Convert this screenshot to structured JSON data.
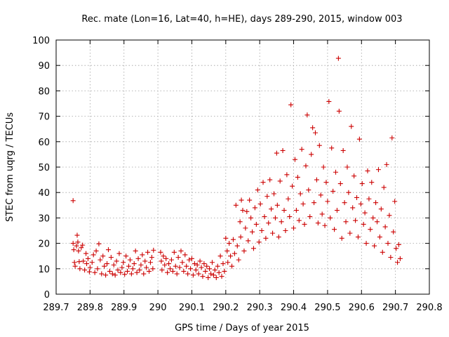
{
  "chart_data": {
    "type": "scatter",
    "title": "Rec. mate (Lon=16, Lat=40, h=HE), days 289-290, 2015, window 003",
    "xlabel": "GPS time / Days of year 2015",
    "ylabel": "STEC from uqrg / TECUs",
    "xlim": [
      289.7,
      290.8
    ],
    "ylim": [
      0,
      100
    ],
    "xticks": [
      289.7,
      289.8,
      289.9,
      290,
      290.1,
      290.2,
      290.3,
      290.4,
      290.5,
      290.6,
      290.7,
      290.8
    ],
    "xtick_labels": [
      "289.7",
      "289.8",
      "289.9",
      "290",
      "290.1",
      "290.2",
      "290.3",
      "290.4",
      "290.5",
      "290.6",
      "290.7",
      "290.8"
    ],
    "yticks": [
      0,
      10,
      20,
      30,
      40,
      50,
      60,
      70,
      80,
      90,
      100
    ],
    "ytick_labels": [
      "0",
      "10",
      "20",
      "30",
      "40",
      "50",
      "60",
      "70",
      "80",
      "90",
      "100"
    ],
    "grid": true,
    "marker": "+",
    "color": "#cc0000",
    "series": [
      {
        "points": [
          [
            289.75,
            36.8
          ],
          [
            289.75,
            20.0
          ],
          [
            289.752,
            17.5
          ],
          [
            289.754,
            12.5
          ],
          [
            289.756,
            11.0
          ],
          [
            289.76,
            19.0
          ],
          [
            289.762,
            23.2
          ],
          [
            289.764,
            20.5
          ],
          [
            289.766,
            17.0
          ],
          [
            289.768,
            12.8
          ],
          [
            289.77,
            10.0
          ],
          [
            289.774,
            18.3
          ],
          [
            289.778,
            19.3
          ],
          [
            289.78,
            13.0
          ],
          [
            289.784,
            9.5
          ],
          [
            289.788,
            16.0
          ],
          [
            289.79,
            12.0
          ],
          [
            289.794,
            14.0
          ],
          [
            289.798,
            8.8
          ],
          [
            289.8,
            10.5
          ],
          [
            289.806,
            12.5
          ],
          [
            289.81,
            15.5
          ],
          [
            289.814,
            8.5
          ],
          [
            289.818,
            17.0
          ],
          [
            289.822,
            10.0
          ],
          [
            289.826,
            19.8
          ],
          [
            289.83,
            13.5
          ],
          [
            289.834,
            8.0
          ],
          [
            289.838,
            15.0
          ],
          [
            289.842,
            11.0
          ],
          [
            289.846,
            7.5
          ],
          [
            289.85,
            12.0
          ],
          [
            289.854,
            17.5
          ],
          [
            289.858,
            9.0
          ],
          [
            289.862,
            14.5
          ],
          [
            289.866,
            8.0
          ],
          [
            289.87,
            11.5
          ],
          [
            289.874,
            7.5
          ],
          [
            289.878,
            13.0
          ],
          [
            289.882,
            9.5
          ],
          [
            289.886,
            16.0
          ],
          [
            289.89,
            8.5
          ],
          [
            289.894,
            10.5
          ],
          [
            289.898,
            12.5
          ],
          [
            289.902,
            7.8
          ],
          [
            289.906,
            15.0
          ],
          [
            289.91,
            9.0
          ],
          [
            289.914,
            11.0
          ],
          [
            289.918,
            13.5
          ],
          [
            289.922,
            8.0
          ],
          [
            289.926,
            10.0
          ],
          [
            289.93,
            12.0
          ],
          [
            289.934,
            17.0
          ],
          [
            289.938,
            8.5
          ],
          [
            289.942,
            14.0
          ],
          [
            289.946,
            9.5
          ],
          [
            289.95,
            11.5
          ],
          [
            289.954,
            15.5
          ],
          [
            289.958,
            8.0
          ],
          [
            289.962,
            13.0
          ],
          [
            289.966,
            10.5
          ],
          [
            289.97,
            16.5
          ],
          [
            289.974,
            9.0
          ],
          [
            289.978,
            12.5
          ],
          [
            289.982,
            14.5
          ],
          [
            289.985,
            10.0
          ],
          [
            289.987,
            17.3
          ],
          [
            290.008,
            16.5
          ],
          [
            290.01,
            13.0
          ],
          [
            290.012,
            9.5
          ],
          [
            290.016,
            15.0
          ],
          [
            290.02,
            11.5
          ],
          [
            290.024,
            14.0
          ],
          [
            290.028,
            8.5
          ],
          [
            290.032,
            12.0
          ],
          [
            290.036,
            10.0
          ],
          [
            290.04,
            13.5
          ],
          [
            290.044,
            9.0
          ],
          [
            290.048,
            16.5
          ],
          [
            290.052,
            11.0
          ],
          [
            290.056,
            8.0
          ],
          [
            290.06,
            14.5
          ],
          [
            290.064,
            10.5
          ],
          [
            290.068,
            17.0
          ],
          [
            290.072,
            12.5
          ],
          [
            290.076,
            9.0
          ],
          [
            290.08,
            15.5
          ],
          [
            290.084,
            11.0
          ],
          [
            290.088,
            8.0
          ],
          [
            290.092,
            13.5
          ],
          [
            290.096,
            10.0
          ],
          [
            290.1,
            14.0
          ],
          [
            290.104,
            7.5
          ],
          [
            290.108,
            12.0
          ],
          [
            290.112,
            9.5
          ],
          [
            290.116,
            11.5
          ],
          [
            290.12,
            8.0
          ],
          [
            290.124,
            13.0
          ],
          [
            290.128,
            10.5
          ],
          [
            290.132,
            7.0
          ],
          [
            290.136,
            12.0
          ],
          [
            290.14,
            9.0
          ],
          [
            290.144,
            11.0
          ],
          [
            290.148,
            6.5
          ],
          [
            290.152,
            10.0
          ],
          [
            290.156,
            8.0
          ],
          [
            290.16,
            12.5
          ],
          [
            290.164,
            7.5
          ],
          [
            290.168,
            9.5
          ],
          [
            290.172,
            6.5
          ],
          [
            290.176,
            11.0
          ],
          [
            290.18,
            8.5
          ],
          [
            290.184,
            15.0
          ],
          [
            290.188,
            7.0
          ],
          [
            290.192,
            12.0
          ],
          [
            290.196,
            9.0
          ],
          [
            290.2,
            22.0
          ],
          [
            290.204,
            17.0
          ],
          [
            290.206,
            12.5
          ],
          [
            290.21,
            20.0
          ],
          [
            290.214,
            15.0
          ],
          [
            290.218,
            11.0
          ],
          [
            290.222,
            21.5
          ],
          [
            290.226,
            16.0
          ],
          [
            290.23,
            35.0
          ],
          [
            290.234,
            19.0
          ],
          [
            290.238,
            13.5
          ],
          [
            290.242,
            28.5
          ],
          [
            290.244,
            22.5
          ],
          [
            290.246,
            37.0
          ],
          [
            290.25,
            33.0
          ],
          [
            290.254,
            17.0
          ],
          [
            290.258,
            26.0
          ],
          [
            290.262,
            32.5
          ],
          [
            290.266,
            21.0
          ],
          [
            290.27,
            37.0
          ],
          [
            290.274,
            30.0
          ],
          [
            290.278,
            24.5
          ],
          [
            290.282,
            18.0
          ],
          [
            290.286,
            34.0
          ],
          [
            290.29,
            27.5
          ],
          [
            290.294,
            41.0
          ],
          [
            290.298,
            20.5
          ],
          [
            290.302,
            35.5
          ],
          [
            290.306,
            25.0
          ],
          [
            290.31,
            44.0
          ],
          [
            290.314,
            30.5
          ],
          [
            290.318,
            22.0
          ],
          [
            290.322,
            38.5
          ],
          [
            290.326,
            28.0
          ],
          [
            290.33,
            45.0
          ],
          [
            290.334,
            33.5
          ],
          [
            290.338,
            24.0
          ],
          [
            290.342,
            39.5
          ],
          [
            290.346,
            30.0
          ],
          [
            290.35,
            55.5
          ],
          [
            290.352,
            35.0
          ],
          [
            290.356,
            22.5
          ],
          [
            290.36,
            44.5
          ],
          [
            290.364,
            28.5
          ],
          [
            290.368,
            56.5
          ],
          [
            290.372,
            33.0
          ],
          [
            290.376,
            25.0
          ],
          [
            290.38,
            47.0
          ],
          [
            290.384,
            37.5
          ],
          [
            290.388,
            30.5
          ],
          [
            290.392,
            74.5
          ],
          [
            290.396,
            42.5
          ],
          [
            290.4,
            26.0
          ],
          [
            290.404,
            53.0
          ],
          [
            290.408,
            33.0
          ],
          [
            290.412,
            46.0
          ],
          [
            290.416,
            29.0
          ],
          [
            290.42,
            39.5
          ],
          [
            290.424,
            57.0
          ],
          [
            290.428,
            35.5
          ],
          [
            290.432,
            27.5
          ],
          [
            290.436,
            50.5
          ],
          [
            290.44,
            70.5
          ],
          [
            290.444,
            41.0
          ],
          [
            290.448,
            30.5
          ],
          [
            290.452,
            55.0
          ],
          [
            290.456,
            65.5
          ],
          [
            290.46,
            36.0
          ],
          [
            290.464,
            63.5
          ],
          [
            290.468,
            45.0
          ],
          [
            290.472,
            28.0
          ],
          [
            290.476,
            58.5
          ],
          [
            290.48,
            39.0
          ],
          [
            290.484,
            31.5
          ],
          [
            290.488,
            50.0
          ],
          [
            290.492,
            27.0
          ],
          [
            290.496,
            44.0
          ],
          [
            290.5,
            36.5
          ],
          [
            290.504,
            75.8
          ],
          [
            290.508,
            30.0
          ],
          [
            290.512,
            57.5
          ],
          [
            290.516,
            40.5
          ],
          [
            290.52,
            25.5
          ],
          [
            290.524,
            48.0
          ],
          [
            290.528,
            33.0
          ],
          [
            290.532,
            92.8
          ],
          [
            290.534,
            72.0
          ],
          [
            290.538,
            43.5
          ],
          [
            290.542,
            22.0
          ],
          [
            290.546,
            56.5
          ],
          [
            290.55,
            36.0
          ],
          [
            290.554,
            28.5
          ],
          [
            290.558,
            50.0
          ],
          [
            290.562,
            40.0
          ],
          [
            290.566,
            24.0
          ],
          [
            290.57,
            66.0
          ],
          [
            290.574,
            34.0
          ],
          [
            290.578,
            46.5
          ],
          [
            290.582,
            29.0
          ],
          [
            290.586,
            38.0
          ],
          [
            290.59,
            22.5
          ],
          [
            290.594,
            61.0
          ],
          [
            290.598,
            35.5
          ],
          [
            290.602,
            43.5
          ],
          [
            290.606,
            27.5
          ],
          [
            290.61,
            32.0
          ],
          [
            290.614,
            20.0
          ],
          [
            290.618,
            48.5
          ],
          [
            290.622,
            37.5
          ],
          [
            290.626,
            25.5
          ],
          [
            290.63,
            44.0
          ],
          [
            290.634,
            30.0
          ],
          [
            290.638,
            19.0
          ],
          [
            290.642,
            36.0
          ],
          [
            290.646,
            28.5
          ],
          [
            290.65,
            49.0
          ],
          [
            290.654,
            22.5
          ],
          [
            290.658,
            33.5
          ],
          [
            290.662,
            16.5
          ],
          [
            290.666,
            42.0
          ],
          [
            290.67,
            26.5
          ],
          [
            290.674,
            51.0
          ],
          [
            290.678,
            20.0
          ],
          [
            290.682,
            31.0
          ],
          [
            290.686,
            14.5
          ],
          [
            290.69,
            61.5
          ],
          [
            290.694,
            24.5
          ],
          [
            290.698,
            36.5
          ],
          [
            290.702,
            18.0
          ],
          [
            290.706,
            12.5
          ],
          [
            290.71,
            19.5
          ],
          [
            290.714,
            14.0
          ]
        ]
      }
    ]
  }
}
